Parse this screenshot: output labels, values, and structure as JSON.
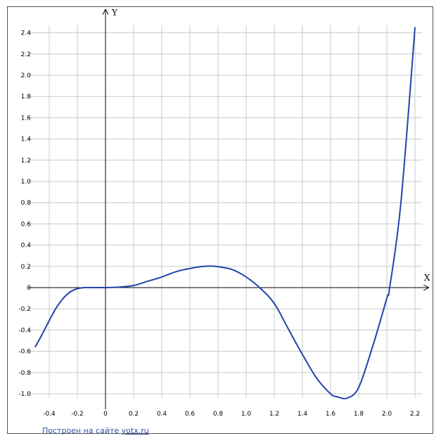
{
  "chart_data": {
    "type": "line",
    "xlabel": "X",
    "ylabel": "Y",
    "xlim": [
      -0.5,
      2.25
    ],
    "ylim": [
      -1.05,
      2.45
    ],
    "x_ticks": [
      -0.4,
      -0.2,
      0,
      0.2,
      0.4,
      0.6,
      0.8,
      1.0,
      1.2,
      1.4,
      1.6,
      1.8,
      2.0,
      2.2
    ],
    "y_ticks": [
      -1.0,
      -0.8,
      -0.6,
      -0.4,
      -0.2,
      0,
      0.2,
      0.4,
      0.6,
      0.8,
      1.0,
      1.2,
      1.4,
      1.6,
      1.8,
      2.0,
      2.2,
      2.4
    ],
    "x_tick_labels": [
      "-0.4",
      "-0.2",
      "0",
      "0.2",
      "0.4",
      "0.6",
      "0.8",
      "1.0",
      "1.2",
      "1.4",
      "1.6",
      "1.8",
      "2.0",
      "2.2"
    ],
    "y_tick_labels": [
      "-1.0",
      "-0.8",
      "-0.6",
      "-0.4",
      "-0.2",
      "0",
      "0.2",
      "0.4",
      "0.6",
      "0.8",
      "1.0",
      "1.2",
      "1.4",
      "1.6",
      "1.8",
      "2.0",
      "2.2",
      "2.4"
    ],
    "grid": true,
    "series": [
      {
        "color": "#2244aa",
        "x": [
          -0.5,
          -0.45,
          -0.4,
          -0.35,
          -0.3,
          -0.25,
          -0.2,
          -0.15,
          -0.1,
          -0.05,
          0,
          0.1,
          0.2,
          0.3,
          0.4,
          0.5,
          0.6,
          0.7,
          0.78,
          0.9,
          1.0,
          1.1,
          1.2,
          1.3,
          1.4,
          1.5,
          1.6,
          1.65,
          1.72,
          1.8,
          1.9,
          2.0,
          2.02,
          2.1,
          2.2
        ],
        "y": [
          -0.56,
          -0.44,
          -0.31,
          -0.19,
          -0.1,
          -0.04,
          -0.01,
          0.0,
          0.0,
          0.0,
          0.0,
          0.005,
          0.02,
          0.06,
          0.1,
          0.15,
          0.18,
          0.2,
          0.2,
          0.17,
          0.1,
          -0.005,
          -0.15,
          -0.39,
          -0.63,
          -0.85,
          -1.0,
          -1.03,
          -1.04,
          -0.94,
          -0.55,
          -0.1,
          0.0,
          0.8,
          2.45
        ]
      }
    ]
  },
  "footer": {
    "credit_prefix": "Построен на сайте ",
    "credit_link": "yotx.ru"
  },
  "colors": {
    "grid": "#c8c8c8",
    "axis": "#000000",
    "curve": "#2244aa",
    "link": "#3355aa"
  }
}
